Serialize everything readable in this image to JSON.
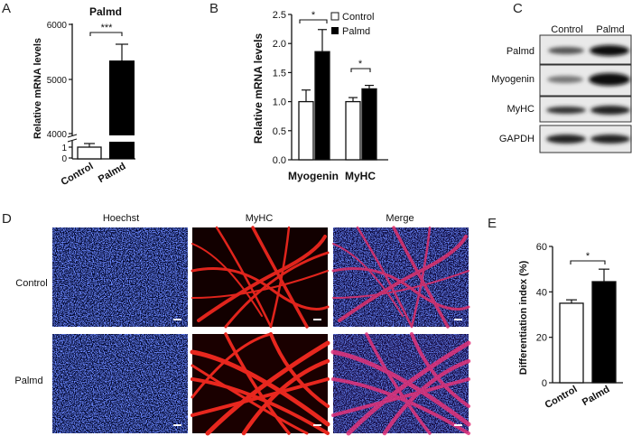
{
  "panels": {
    "A": {
      "letter": "A",
      "title": "Palmd",
      "ylabel": "Relative mRNA levels",
      "y_ticks_upper": [
        "6000",
        "5000",
        "4000"
      ],
      "y_ticks_lower": [
        "1",
        "0"
      ],
      "categories": [
        "Control",
        "Palmd"
      ],
      "significance": "***"
    },
    "B": {
      "letter": "B",
      "ylabel": "Relative mRNA levels",
      "y_ticks": [
        "2.5",
        "2.0",
        "1.5",
        "1.0",
        "0.5",
        "0.0"
      ],
      "groups": [
        "Myogenin",
        "MyHC"
      ],
      "legend": [
        "Control",
        "Palmd"
      ],
      "significance": [
        "*",
        "*"
      ]
    },
    "C": {
      "letter": "C",
      "columns": [
        "Control",
        "Palmd"
      ],
      "rows": [
        "Palmd",
        "Myogenin",
        "MyHC",
        "GAPDH"
      ]
    },
    "D": {
      "letter": "D",
      "columns": [
        "Hoechst",
        "MyHC",
        "Merge"
      ],
      "rows": [
        "Control",
        "Palmd"
      ]
    },
    "E": {
      "letter": "E",
      "ylabel": "Differentiation index (%)",
      "y_ticks": [
        "60",
        "40",
        "20",
        "0"
      ],
      "categories": [
        "Control",
        "Palmd"
      ],
      "significance": "*"
    }
  },
  "chart_data": [
    {
      "type": "bar",
      "panel": "A",
      "title": "Palmd",
      "ylabel": "Relative mRNA levels",
      "categories": [
        "Control",
        "Palmd"
      ],
      "values": [
        1,
        5330
      ],
      "errors": [
        0.3,
        290
      ],
      "ylim_lower": [
        0,
        1.5
      ],
      "ylim_upper": [
        4000,
        6000
      ],
      "axis_break": true,
      "colors": [
        "#ffffff",
        "#000000"
      ]
    },
    {
      "type": "bar",
      "panel": "B",
      "ylabel": "Relative mRNA levels",
      "categories": [
        "Myogenin",
        "MyHC"
      ],
      "series": [
        {
          "name": "Control",
          "values": [
            1.0,
            1.0
          ],
          "errors": [
            0.2,
            0.07
          ]
        },
        {
          "name": "Palmd",
          "values": [
            1.86,
            1.22
          ],
          "errors": [
            0.38,
            0.06
          ]
        }
      ],
      "ylim": [
        0,
        2.5
      ],
      "legend": "top-right",
      "colors": [
        "#ffffff",
        "#000000"
      ]
    },
    {
      "type": "bar",
      "panel": "E",
      "ylabel": "Differentiation index (%)",
      "categories": [
        "Control",
        "Palmd"
      ],
      "values": [
        35,
        44.5
      ],
      "errors": [
        1.5,
        5.5
      ],
      "ylim": [
        0,
        60
      ],
      "colors": [
        "#ffffff",
        "#000000"
      ]
    }
  ]
}
